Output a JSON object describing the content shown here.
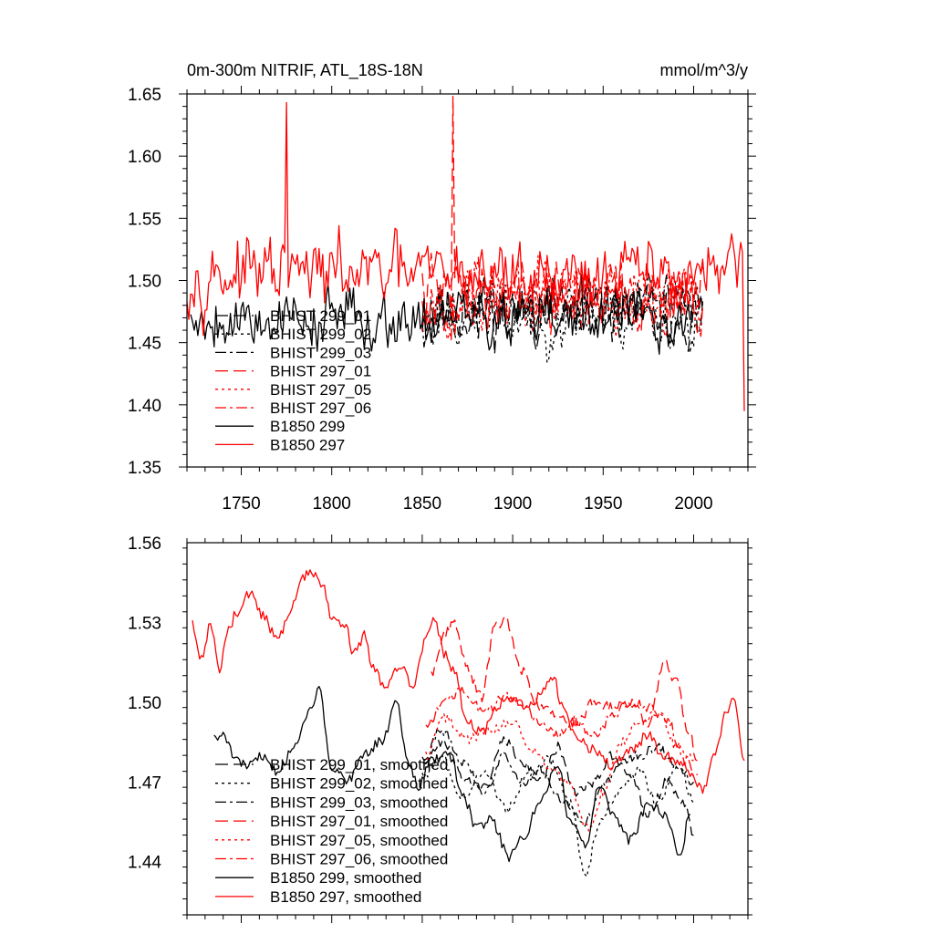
{
  "chart_data": [
    {
      "type": "line",
      "title": "0m-300m NITRIF, ATL_18S-18N",
      "units": "mmol/m^3/y",
      "xlim": [
        1720,
        2030
      ],
      "ylim": [
        1.35,
        1.65
      ],
      "xticks": [
        1750,
        1800,
        1850,
        1900,
        1950,
        2000
      ],
      "xtick_labels": [
        "1750",
        "1800",
        "1850",
        "1900",
        "1950",
        "2000"
      ],
      "yticks": [
        1.35,
        1.4,
        1.45,
        1.5,
        1.55,
        1.6,
        1.65
      ],
      "ytick_labels": [
        "1.35",
        "1.40",
        "1.45",
        "1.50",
        "1.55",
        "1.60",
        "1.65"
      ],
      "legend_position": "lower-left",
      "series": [
        {
          "name": "BHIST 299_01",
          "color": "#000000",
          "dash": "long-dash",
          "x_start": 1850,
          "x_end": 2005,
          "mean": 1.475,
          "amp": 0.04,
          "seed": 11
        },
        {
          "name": "BHIST 299_02",
          "color": "#000000",
          "dash": "dot",
          "x_start": 1850,
          "x_end": 2005,
          "mean": 1.472,
          "amp": 0.04,
          "seed": 23
        },
        {
          "name": "BHIST 299_03",
          "color": "#000000",
          "dash": "dash-dot",
          "x_start": 1850,
          "x_end": 2005,
          "mean": 1.478,
          "amp": 0.04,
          "seed": 37
        },
        {
          "name": "BHIST 297_01",
          "color": "#ff0000",
          "dash": "long-dash",
          "x_start": 1850,
          "x_end": 2005,
          "mean": 1.49,
          "amp": 0.042,
          "seed": 41
        },
        {
          "name": "BHIST 297_05",
          "color": "#ff0000",
          "dash": "dot",
          "x_start": 1850,
          "x_end": 2005,
          "mean": 1.485,
          "amp": 0.042,
          "seed": 53
        },
        {
          "name": "BHIST 297_06",
          "color": "#ff0000",
          "dash": "dash-dot",
          "x_start": 1850,
          "x_end": 2005,
          "mean": 1.488,
          "amp": 0.042,
          "seed": 67
        },
        {
          "name": "B1850 299",
          "color": "#000000",
          "dash": "solid",
          "x_start": 1722,
          "x_end": 1998,
          "mean": 1.47,
          "amp": 0.038,
          "seed": 79
        },
        {
          "name": "B1850 297",
          "color": "#ff0000",
          "dash": "solid",
          "x_start": 1720,
          "x_end": 2028,
          "mean": 1.505,
          "amp": 0.042,
          "seed": 97
        }
      ],
      "highlights": [
        {
          "series": "B1850 297",
          "x": 1775,
          "y": 1.643
        },
        {
          "series": "BHIST 297_01",
          "x": 1867,
          "y": 1.648
        },
        {
          "series": "B1850 297",
          "x": 2028,
          "y": 1.395
        }
      ]
    },
    {
      "type": "line",
      "title": "",
      "xlim": [
        1720,
        2030
      ],
      "ylim": [
        1.42,
        1.56
      ],
      "xticks": [
        1750,
        1800,
        1850,
        1900,
        1950,
        2000
      ],
      "yticks": [
        1.44,
        1.47,
        1.5,
        1.53,
        1.56
      ],
      "ytick_labels": [
        "1.44",
        "1.47",
        "1.50",
        "1.53",
        "1.56"
      ],
      "legend_position": "lower-left",
      "series": [
        {
          "name": "BHIST 299_01, smoothed",
          "color": "#000000",
          "dash": "long-dash",
          "anchors": [
            [
              1850,
              1.478
            ],
            [
              1862,
              1.485
            ],
            [
              1875,
              1.47
            ],
            [
              1885,
              1.468
            ],
            [
              1895,
              1.486
            ],
            [
              1905,
              1.478
            ],
            [
              1915,
              1.47
            ],
            [
              1925,
              1.483
            ],
            [
              1935,
              1.466
            ],
            [
              1945,
              1.47
            ],
            [
              1955,
              1.48
            ],
            [
              1965,
              1.472
            ],
            [
              1975,
              1.458
            ],
            [
              1985,
              1.47
            ],
            [
              1995,
              1.462
            ],
            [
              2000,
              1.45
            ]
          ]
        },
        {
          "name": "BHIST 299_02, smoothed",
          "color": "#000000",
          "dash": "dot",
          "anchors": [
            [
              1850,
              1.472
            ],
            [
              1860,
              1.48
            ],
            [
              1872,
              1.465
            ],
            [
              1885,
              1.473
            ],
            [
              1897,
              1.46
            ],
            [
              1908,
              1.472
            ],
            [
              1920,
              1.478
            ],
            [
              1932,
              1.462
            ],
            [
              1940,
              1.434
            ],
            [
              1948,
              1.455
            ],
            [
              1958,
              1.466
            ],
            [
              1970,
              1.474
            ],
            [
              1980,
              1.462
            ],
            [
              1992,
              1.478
            ],
            [
              2000,
              1.462
            ]
          ]
        },
        {
          "name": "BHIST 299_03, smoothed",
          "color": "#000000",
          "dash": "dash-dot",
          "anchors": [
            [
              1850,
              1.476
            ],
            [
              1860,
              1.49
            ],
            [
              1872,
              1.478
            ],
            [
              1885,
              1.466
            ],
            [
              1895,
              1.48
            ],
            [
              1905,
              1.47
            ],
            [
              1915,
              1.475
            ],
            [
              1928,
              1.462
            ],
            [
              1940,
              1.455
            ],
            [
              1950,
              1.468
            ],
            [
              1960,
              1.478
            ],
            [
              1970,
              1.48
            ],
            [
              1980,
              1.483
            ],
            [
              1990,
              1.476
            ],
            [
              2000,
              1.47
            ]
          ]
        },
        {
          "name": "BHIST 297_01, smoothed",
          "color": "#ff0000",
          "dash": "long-dash",
          "anchors": [
            [
              1855,
              1.51
            ],
            [
              1862,
              1.525
            ],
            [
              1868,
              1.53
            ],
            [
              1875,
              1.512
            ],
            [
              1883,
              1.502
            ],
            [
              1890,
              1.528
            ],
            [
              1896,
              1.531
            ],
            [
              1905,
              1.512
            ],
            [
              1915,
              1.498
            ],
            [
              1925,
              1.496
            ],
            [
              1935,
              1.492
            ],
            [
              1945,
              1.5
            ],
            [
              1955,
              1.498
            ],
            [
              1965,
              1.5
            ],
            [
              1975,
              1.492
            ],
            [
              1984,
              1.515
            ],
            [
              1990,
              1.508
            ],
            [
              1997,
              1.49
            ],
            [
              2002,
              1.478
            ]
          ]
        },
        {
          "name": "BHIST 297_05, smoothed",
          "color": "#ff0000",
          "dash": "dot",
          "anchors": [
            [
              1852,
              1.48
            ],
            [
              1862,
              1.494
            ],
            [
              1875,
              1.486
            ],
            [
              1888,
              1.49
            ],
            [
              1900,
              1.492
            ],
            [
              1910,
              1.483
            ],
            [
              1920,
              1.476
            ],
            [
              1930,
              1.47
            ],
            [
              1942,
              1.452
            ],
            [
              1950,
              1.466
            ],
            [
              1960,
              1.485
            ],
            [
              1970,
              1.492
            ],
            [
              1980,
              1.496
            ],
            [
              1990,
              1.484
            ],
            [
              2000,
              1.478
            ]
          ]
        },
        {
          "name": "BHIST 297_06, smoothed",
          "color": "#ff0000",
          "dash": "dash-dot",
          "anchors": [
            [
              1852,
              1.49
            ],
            [
              1862,
              1.5
            ],
            [
              1872,
              1.505
            ],
            [
              1885,
              1.496
            ],
            [
              1895,
              1.503
            ],
            [
              1905,
              1.5
            ],
            [
              1915,
              1.492
            ],
            [
              1925,
              1.488
            ],
            [
              1935,
              1.493
            ],
            [
              1945,
              1.487
            ],
            [
              1955,
              1.495
            ],
            [
              1965,
              1.5
            ],
            [
              1975,
              1.498
            ],
            [
              1985,
              1.494
            ],
            [
              1995,
              1.478
            ],
            [
              2002,
              1.473
            ]
          ]
        },
        {
          "name": "B1850 299, smoothed",
          "color": "#000000",
          "dash": "solid",
          "anchors": [
            [
              1735,
              1.486
            ],
            [
              1740,
              1.488
            ],
            [
              1748,
              1.478
            ],
            [
              1755,
              1.476
            ],
            [
              1762,
              1.48
            ],
            [
              1770,
              1.474
            ],
            [
              1780,
              1.484
            ],
            [
              1788,
              1.496
            ],
            [
              1793,
              1.505
            ],
            [
              1800,
              1.476
            ],
            [
              1808,
              1.47
            ],
            [
              1818,
              1.48
            ],
            [
              1828,
              1.486
            ],
            [
              1836,
              1.5
            ],
            [
              1842,
              1.478
            ],
            [
              1848,
              1.468
            ],
            [
              1855,
              1.478
            ],
            [
              1865,
              1.48
            ],
            [
              1872,
              1.466
            ],
            [
              1880,
              1.453
            ],
            [
              1888,
              1.456
            ],
            [
              1898,
              1.442
            ],
            [
              1905,
              1.448
            ],
            [
              1915,
              1.462
            ],
            [
              1925,
              1.476
            ],
            [
              1932,
              1.454
            ],
            [
              1940,
              1.446
            ],
            [
              1948,
              1.47
            ],
            [
              1955,
              1.458
            ],
            [
              1965,
              1.448
            ],
            [
              1975,
              1.462
            ],
            [
              1985,
              1.457
            ],
            [
              1992,
              1.441
            ],
            [
              1998,
              1.458
            ]
          ]
        },
        {
          "name": "B1850 297, smoothed",
          "color": "#ff0000",
          "dash": "solid",
          "anchors": [
            [
              1723,
              1.529
            ],
            [
              1728,
              1.517
            ],
            [
              1733,
              1.529
            ],
            [
              1738,
              1.512
            ],
            [
              1742,
              1.527
            ],
            [
              1748,
              1.534
            ],
            [
              1755,
              1.541
            ],
            [
              1762,
              1.533
            ],
            [
              1770,
              1.523
            ],
            [
              1777,
              1.534
            ],
            [
              1784,
              1.546
            ],
            [
              1788,
              1.549
            ],
            [
              1795,
              1.544
            ],
            [
              1800,
              1.532
            ],
            [
              1808,
              1.528
            ],
            [
              1812,
              1.518
            ],
            [
              1818,
              1.525
            ],
            [
              1822,
              1.514
            ],
            [
              1830,
              1.505
            ],
            [
              1838,
              1.514
            ],
            [
              1845,
              1.506
            ],
            [
              1851,
              1.522
            ],
            [
              1857,
              1.532
            ],
            [
              1862,
              1.518
            ],
            [
              1868,
              1.512
            ],
            [
              1874,
              1.494
            ],
            [
              1883,
              1.488
            ],
            [
              1890,
              1.497
            ],
            [
              1898,
              1.502
            ],
            [
              1907,
              1.497
            ],
            [
              1915,
              1.502
            ],
            [
              1922,
              1.51
            ],
            [
              1928,
              1.498
            ],
            [
              1934,
              1.488
            ],
            [
              1945,
              1.482
            ],
            [
              1955,
              1.476
            ],
            [
              1966,
              1.482
            ],
            [
              1975,
              1.488
            ],
            [
              1983,
              1.48
            ],
            [
              1991,
              1.478
            ],
            [
              2000,
              1.472
            ],
            [
              2005,
              1.466
            ],
            [
              2012,
              1.48
            ],
            [
              2018,
              1.496
            ],
            [
              2022,
              1.502
            ],
            [
              2028,
              1.478
            ]
          ]
        }
      ]
    }
  ]
}
